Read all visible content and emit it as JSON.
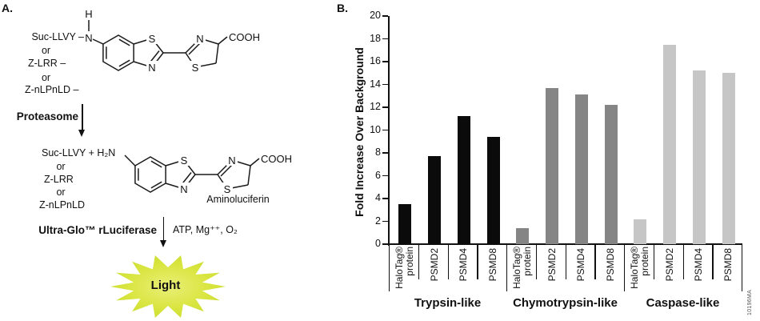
{
  "panel_a": {
    "label": "A.",
    "or_label": "or",
    "substrates_before": {
      "line1": "Suc-LLVY –",
      "line2": "Z-LRR –",
      "line3": "Z-nLPnLD –"
    },
    "atoms": {
      "h": "H",
      "n": "N",
      "s": "S",
      "cooh": "COOH"
    },
    "enzyme_step1": "Proteasome",
    "substrates_after": {
      "line1": "Suc-LLVY + H₂N",
      "line2": "Z-LRR",
      "line3": "Z-nLPnLD"
    },
    "product_label": "Aminoluciferin",
    "enzyme_step2": "Ultra-Glo™ rLuciferase",
    "cofactors": "ATP, Mg⁺⁺, O₂",
    "light_label": "Light",
    "star_colors": {
      "center": "#eaef78",
      "mid": "#d9e53f",
      "edge": "#c7db2d"
    }
  },
  "panel_b": {
    "label": "B.",
    "figure_code": "10196MA"
  },
  "chart_data": {
    "type": "bar",
    "title": "",
    "ylabel": "Fold Increase Over Background",
    "xlabel": "",
    "ylim": [
      0,
      20
    ],
    "ytick_step": 2,
    "grid": false,
    "legend": "none",
    "categories_per_group": [
      [
        "HaloTag®",
        "protein"
      ],
      [
        "PSMD2"
      ],
      [
        "PSMD4"
      ],
      [
        "PSMD8"
      ]
    ],
    "groups": [
      {
        "label": "Trypsin-like",
        "bar_color": "#0b0b0b",
        "values": [
          3.5,
          7.7,
          11.2,
          9.4
        ]
      },
      {
        "label": "Chymotrypsin-like",
        "bar_color": "#858585",
        "values": [
          1.4,
          13.7,
          13.1,
          12.2
        ]
      },
      {
        "label": "Caspase-like",
        "bar_color": "#c6c6c6",
        "values": [
          2.2,
          17.5,
          15.2,
          15.0
        ]
      }
    ]
  }
}
